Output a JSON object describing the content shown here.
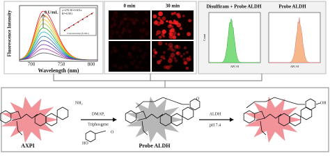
{
  "panel_spectra": {
    "y_label": "Fluorescence Intensity",
    "x_label": "Wavelength (nm)",
    "x_ticks": [
      "700",
      "750",
      "800"
    ],
    "top_label": "8 U/mL",
    "inset": {
      "equation": "y=276.30+0.601x",
      "r2": "R²=0.991",
      "x_label": "Concentration (U/mL)"
    }
  },
  "panel_imaging": {
    "labels": [
      "0 min",
      "30 min"
    ]
  },
  "panel_flow": {
    "labels": [
      "Disulfiram + Probe ALDH",
      "Probe ALDH"
    ],
    "y_label": "Count",
    "x_label": "APC-H"
  },
  "scheme": {
    "compounds": [
      "AXPI",
      "Probe ALDH"
    ],
    "step1": [
      "DMAP,",
      "Triphosgene"
    ],
    "step2": [
      "ALDH",
      "pH 7.4"
    ],
    "atoms": {
      "amine": "NH₂",
      "hydroxyl": "HO",
      "aldehyde": "O",
      "acid": "OH"
    }
  }
}
